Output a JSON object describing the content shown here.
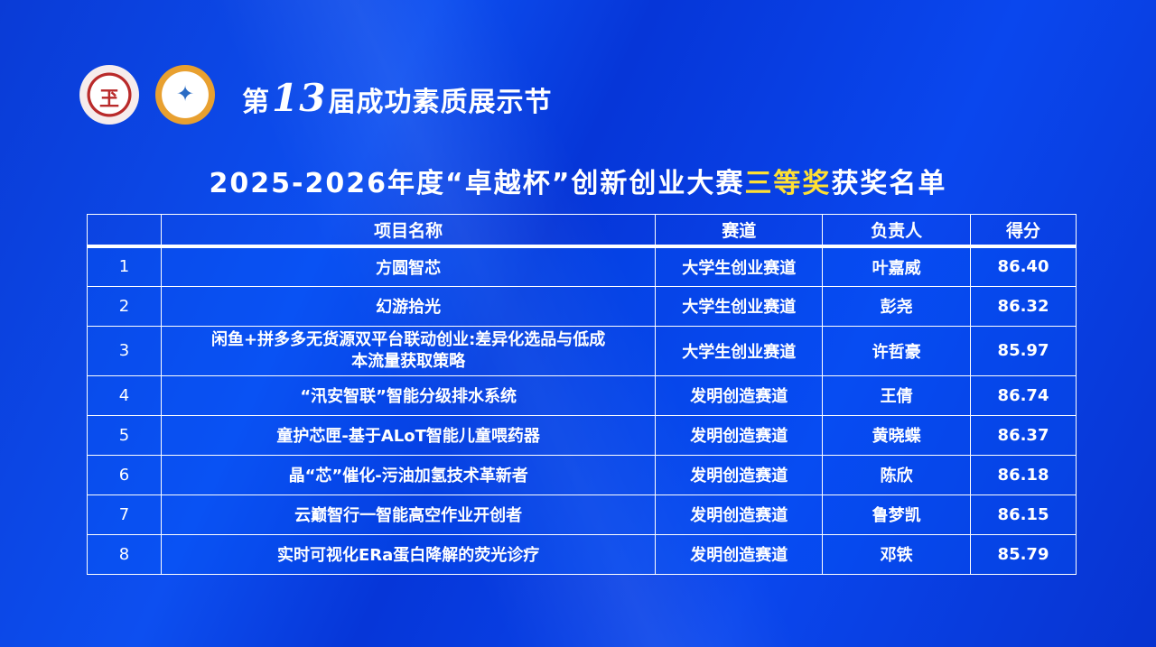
{
  "header": {
    "prefix": "第",
    "edition": "13",
    "suffix": "届成功素质展示节"
  },
  "title": {
    "part1": "2025-2026年度“卓越杯”创新创业大赛",
    "highlight": "三等奖",
    "part2": "获奖名单",
    "highlight_color": "#ffe033"
  },
  "logos": [
    {
      "name": "university-seal"
    },
    {
      "name": "festival-emblem"
    }
  ],
  "table": {
    "headers": [
      "",
      "项目名称",
      "赛道",
      "负责人",
      "得分"
    ],
    "rows": [
      {
        "no": "1",
        "project": "方圆智芯",
        "track": "大学生创业赛道",
        "leader": "叶嘉威",
        "score": "86.40"
      },
      {
        "no": "2",
        "project": "幻游拾光",
        "track": "大学生创业赛道",
        "leader": "彭尧",
        "score": "86.32"
      },
      {
        "no": "3",
        "project": "闲鱼+拼多多无货源双平台联动创业:差异化选品与低成本流量获取策略",
        "track": "大学生创业赛道",
        "leader": "许哲豪",
        "score": "85.97"
      },
      {
        "no": "4",
        "project": "“汛安智联”智能分级排水系统",
        "track": "发明创造赛道",
        "leader": "王倩",
        "score": "86.74"
      },
      {
        "no": "5",
        "project": "童护芯匣-基于ALoT智能儿童喂药器",
        "track": "发明创造赛道",
        "leader": "黄晓蝶",
        "score": "86.37"
      },
      {
        "no": "6",
        "project": "晶“芯”催化-污油加氢技术革新者",
        "track": "发明创造赛道",
        "leader": "陈欣",
        "score": "86.18"
      },
      {
        "no": "7",
        "project": "云巅智行一智能高空作业开创者",
        "track": "发明创造赛道",
        "leader": "鲁梦凯",
        "score": "86.15"
      },
      {
        "no": "8",
        "project": "实时可视化ERa蛋白降解的荧光诊疗",
        "track": "发明创造赛道",
        "leader": "邓铁",
        "score": "85.79"
      }
    ]
  }
}
